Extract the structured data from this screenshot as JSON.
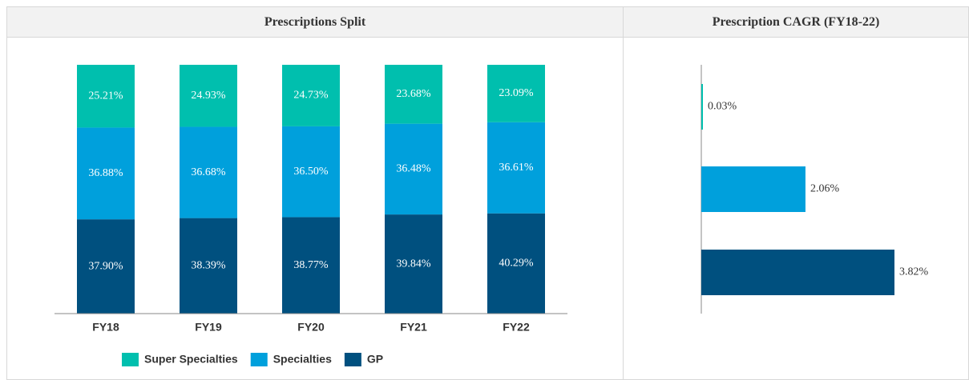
{
  "chart_data": [
    {
      "type": "stacked-bar",
      "title": "Prescriptions Split",
      "categories": [
        "FY18",
        "FY19",
        "FY20",
        "FY21",
        "FY22"
      ],
      "series": [
        {
          "name": "Super Specialties",
          "color": "#00bfae",
          "values": [
            25.21,
            24.93,
            24.73,
            23.68,
            23.09
          ],
          "value_labels": [
            "25.21%",
            "24.93%",
            "24.73%",
            "23.68%",
            "23.09%"
          ]
        },
        {
          "name": "Specialties",
          "color": "#00a0dc",
          "values": [
            36.88,
            36.68,
            36.5,
            36.48,
            36.61
          ],
          "value_labels": [
            "36.88%",
            "36.68%",
            "36.50%",
            "36.48%",
            "36.61%"
          ]
        },
        {
          "name": "GP",
          "color": "#00507f",
          "values": [
            37.9,
            38.39,
            38.77,
            39.84,
            40.29
          ],
          "value_labels": [
            "37.90%",
            "38.39%",
            "38.77%",
            "39.84%",
            "40.29%"
          ]
        }
      ]
    },
    {
      "type": "hbar",
      "title": "Prescription CAGR (FY18-22)",
      "values": [
        0.03,
        2.06,
        3.82
      ],
      "value_labels": [
        "0.03%",
        "2.06%",
        "3.82%"
      ],
      "colors": [
        "#00bfae",
        "#00a0dc",
        "#00507f"
      ]
    }
  ]
}
